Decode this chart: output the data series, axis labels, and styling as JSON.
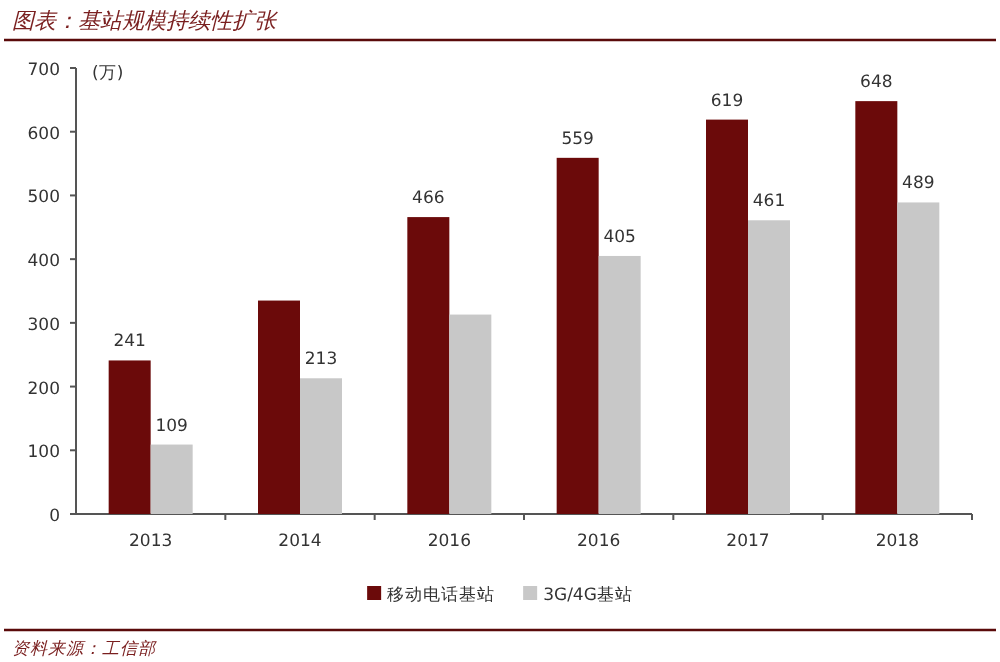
{
  "chart_data": {
    "type": "bar",
    "title": "图表：基站规模持续性扩张",
    "ylabel": "(万)",
    "categories": [
      "2013",
      "2014",
      "2016",
      "2016",
      "2017",
      "2018"
    ],
    "series": [
      {
        "name": "移动电话基站",
        "color": "#6b0a0a",
        "values": [
          241,
          335,
          466,
          559,
          619,
          648
        ],
        "value_labels": [
          "241",
          null,
          "466",
          "559",
          "619",
          "648"
        ]
      },
      {
        "name": "3G/4G基站",
        "color": "#c8c8c8",
        "values": [
          109,
          213,
          313,
          405,
          461,
          489
        ],
        "value_labels": [
          "109",
          "213",
          null,
          "405",
          "461",
          "489"
        ]
      }
    ],
    "ylim": [
      0,
      700
    ],
    "yticks": [
      0,
      100,
      200,
      300,
      400,
      500,
      600,
      700
    ],
    "grid": false,
    "legend": "bottom",
    "annotations": [
      "资料来源：工信部"
    ]
  }
}
